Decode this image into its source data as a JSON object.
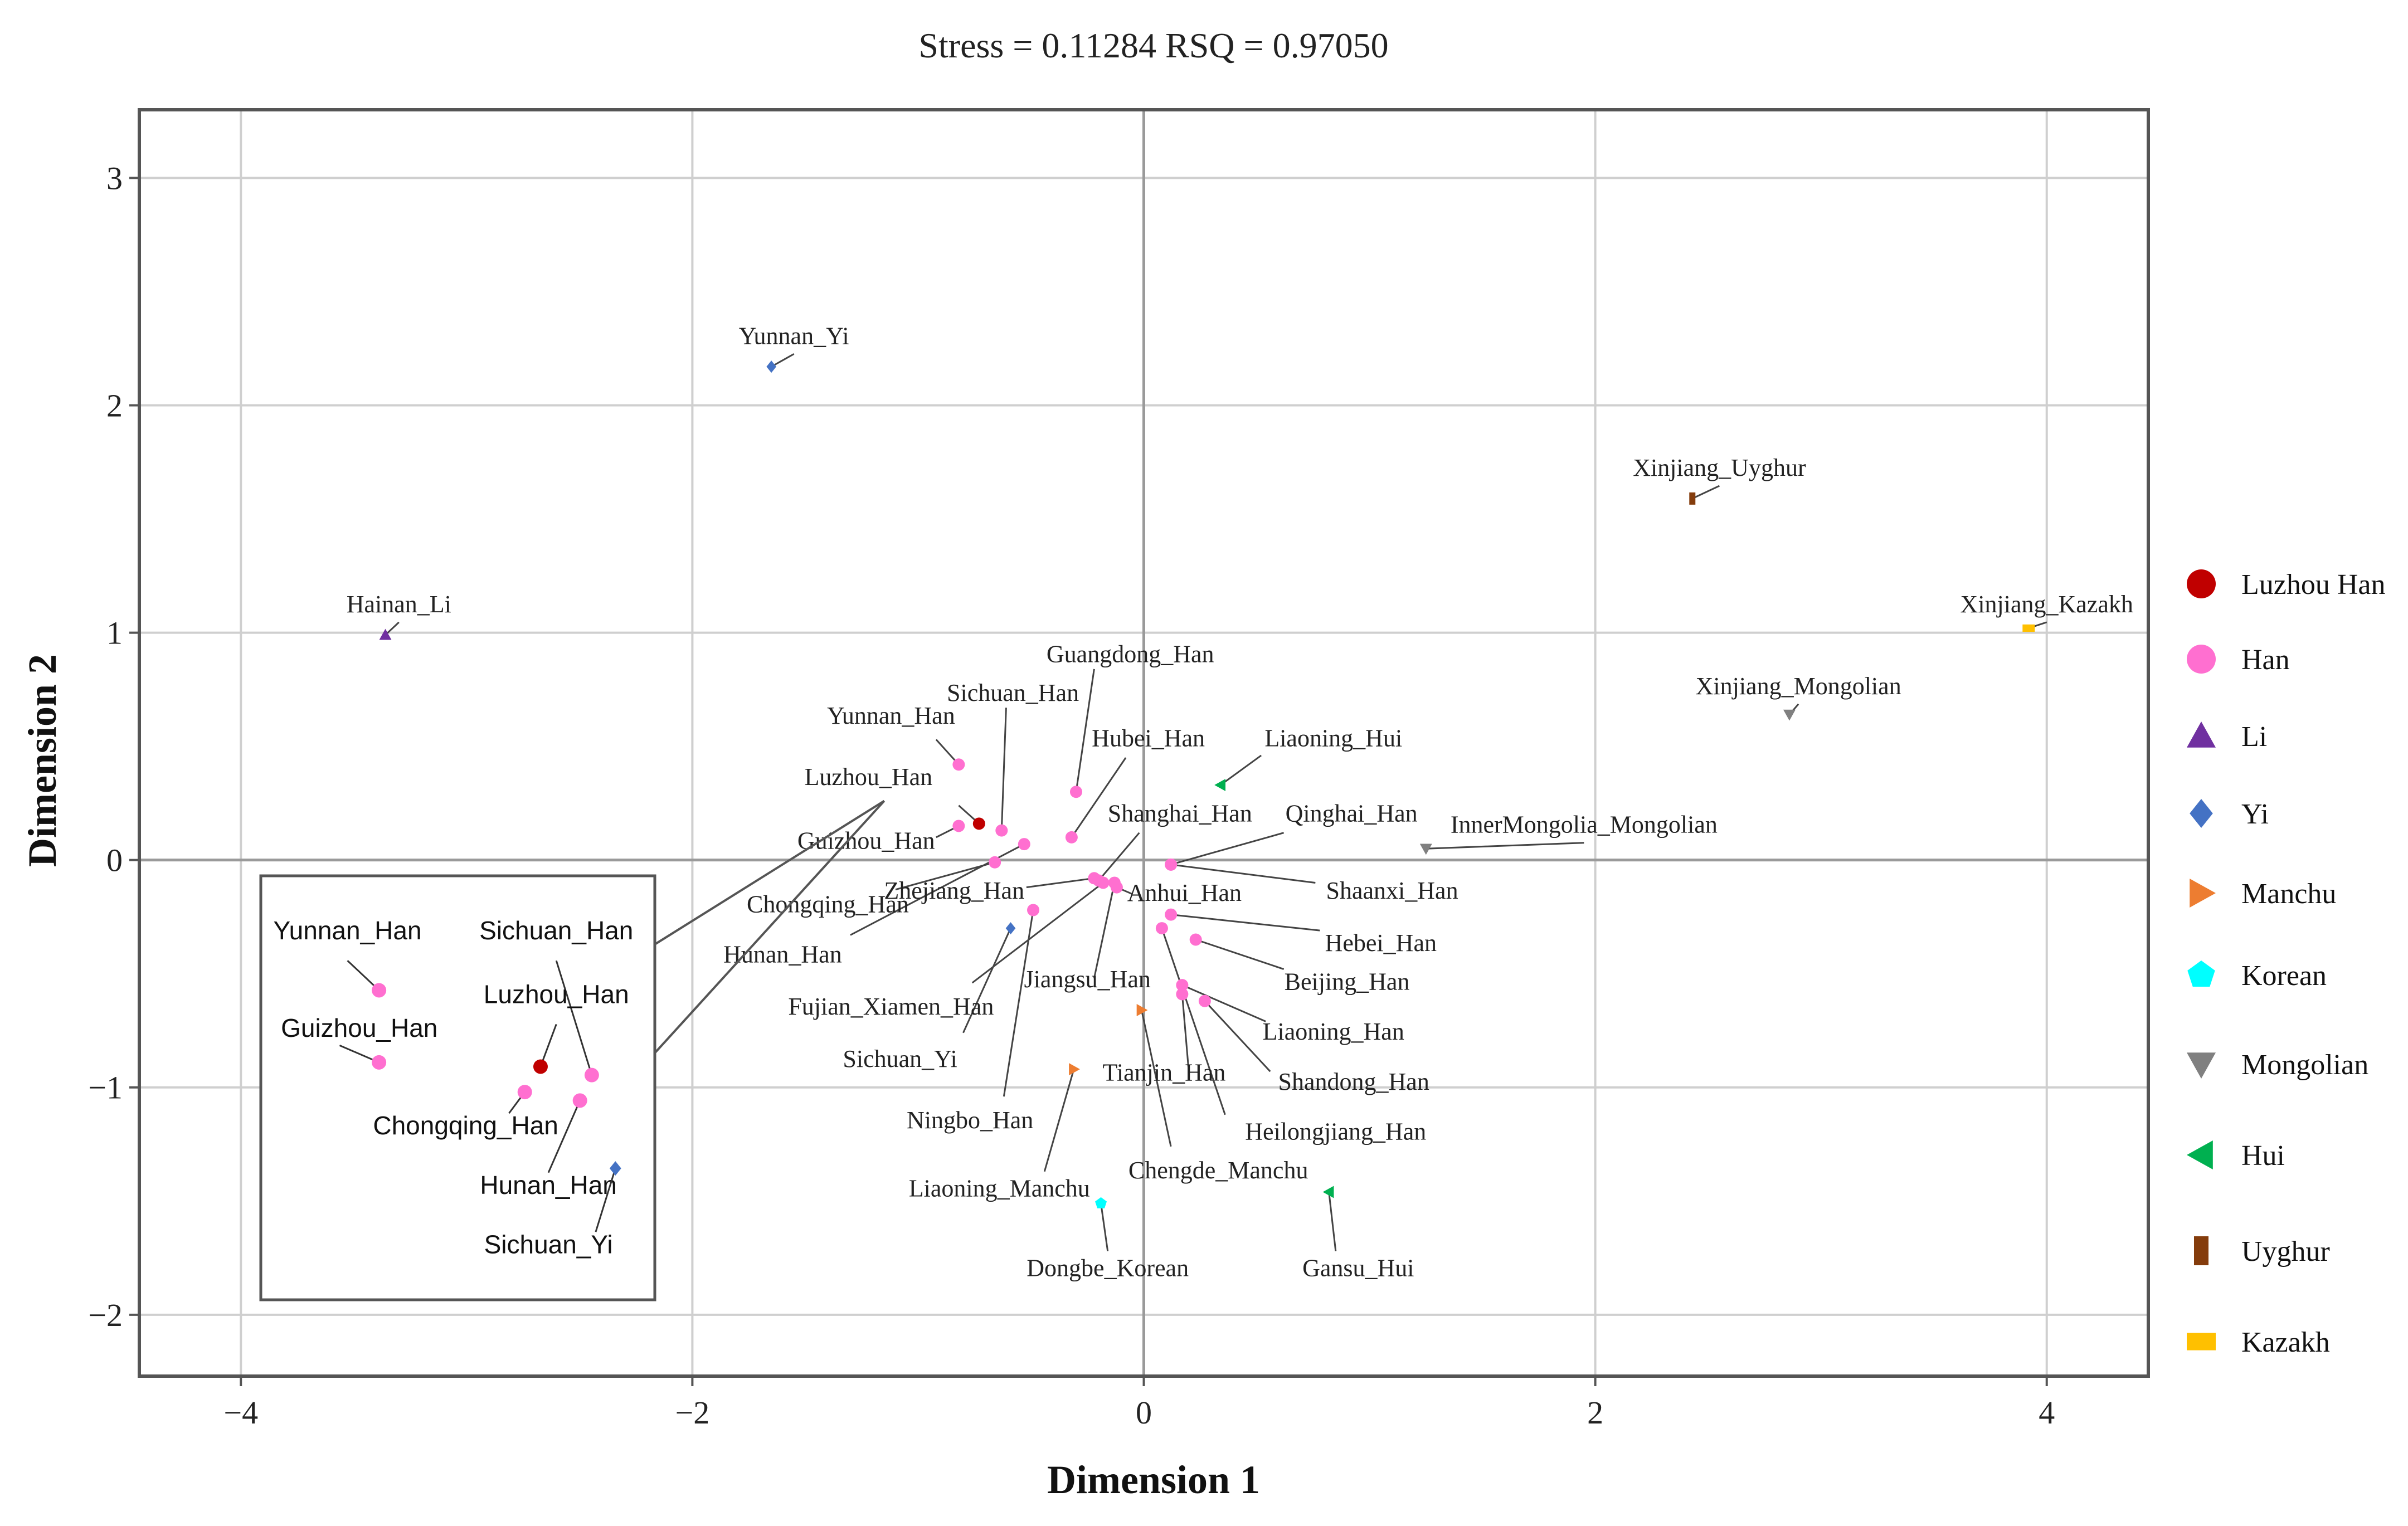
{
  "chart_data": {
    "type": "scatter",
    "title": "Stress = 0.11284  RSQ = 0.97050",
    "xlabel": "Dimension 1",
    "ylabel": "Dimension 2",
    "xlim": [
      -4.45,
      4.45
    ],
    "ylim": [
      -2.27,
      3.3
    ],
    "xticks": [
      -4,
      -2,
      0,
      2,
      4
    ],
    "yticks": [
      -2,
      -1,
      0,
      1,
      2,
      3
    ],
    "xtick_labels": [
      "−4",
      "−2",
      "0",
      "2",
      "4"
    ],
    "ytick_labels": [
      "−2",
      "−1",
      "0",
      "1",
      "2",
      "3"
    ],
    "grid": true,
    "legend_position": "right",
    "groups": [
      {
        "key": "luzhou_han",
        "name": "Luzhou Han",
        "color": "#C00000",
        "marker": "circle"
      },
      {
        "key": "han",
        "name": "Han",
        "color": "#FF6FD0",
        "marker": "circle"
      },
      {
        "key": "li",
        "name": "Li",
        "color": "#7030A0",
        "marker": "triangle-up"
      },
      {
        "key": "yi",
        "name": "Yi",
        "color": "#4472C4",
        "marker": "diamond"
      },
      {
        "key": "manchu",
        "name": "Manchu",
        "color": "#ED7D31",
        "marker": "triangle-right"
      },
      {
        "key": "korean",
        "name": "Korean",
        "color": "#00FFFF",
        "marker": "pentagon"
      },
      {
        "key": "mongolian",
        "name": "Mongolian",
        "color": "#808080",
        "marker": "triangle-down"
      },
      {
        "key": "hui",
        "name": "Hui",
        "color": "#00B050",
        "marker": "triangle-left"
      },
      {
        "key": "uyghur",
        "name": "Uyghur",
        "color": "#843C0C",
        "marker": "rect-tall"
      },
      {
        "key": "kazakh",
        "name": "Kazakh",
        "color": "#FFC000",
        "marker": "rect-wide"
      }
    ],
    "points": [
      {
        "label": "Yunnan_Yi",
        "group": "yi",
        "x": -1.65,
        "y": 2.17,
        "lx": -1.55,
        "ly": 2.27
      },
      {
        "label": "Hainan_Li",
        "group": "li",
        "x": -3.36,
        "y": 0.99,
        "lx": -3.3,
        "ly": 1.09
      },
      {
        "label": "Xinjiang_Uyghur",
        "group": "uyghur",
        "x": 2.43,
        "y": 1.59,
        "lx": 2.55,
        "ly": 1.69
      },
      {
        "label": "Xinjiang_Kazakh",
        "group": "kazakh",
        "x": 3.92,
        "y": 1.02,
        "lx": 4.0,
        "ly": 1.09
      },
      {
        "label": "Xinjiang_Mongolian",
        "group": "mongolian",
        "x": 2.86,
        "y": 0.64,
        "lx": 2.9,
        "ly": 0.73
      },
      {
        "label": "InnerMongolia_Mongolian",
        "group": "mongolian",
        "x": 1.25,
        "y": 0.05,
        "lx": 1.95,
        "ly": 0.12
      },
      {
        "label": "Guangdong_Han",
        "group": "han",
        "x": -0.3,
        "y": 0.3,
        "lx": -0.06,
        "ly": 0.87,
        "x2": -0.22,
        "y2": 0.84
      },
      {
        "label": "Sichuan_Han",
        "group": "han",
        "x": -0.63,
        "y": 0.13,
        "lx": -0.58,
        "ly": 0.7,
        "x2": -0.61,
        "y2": 0.67
      },
      {
        "label": "Yunnan_Han",
        "group": "han",
        "x": -0.82,
        "y": 0.42,
        "lx": -1.12,
        "ly": 0.6,
        "x2": -0.92,
        "y2": 0.53
      },
      {
        "label": "Luzhou_Han",
        "group": "luzhou_han",
        "x": -0.73,
        "y": 0.16,
        "lx": -1.22,
        "ly": 0.33,
        "x2": -0.82,
        "y2": 0.24
      },
      {
        "label": "Guizhou_Han",
        "group": "han",
        "x": -0.82,
        "y": 0.15,
        "lx": -1.23,
        "ly": 0.05,
        "x2": -0.92,
        "y2": 0.1
      },
      {
        "label": "Chongqing_Han",
        "group": "han",
        "x": -0.66,
        "y": -0.01,
        "lx": -1.4,
        "ly": -0.23,
        "x2": -1.1,
        "y2": -0.13
      },
      {
        "label": "Zhejiang_Han",
        "group": "han",
        "x": -0.22,
        "y": -0.08,
        "lx": -0.84,
        "ly": -0.17,
        "x2": -0.52,
        "y2": -0.12
      },
      {
        "label": "Hunan_Han",
        "group": "han",
        "x": -0.53,
        "y": 0.07,
        "lx": -1.6,
        "ly": -0.45,
        "x2": -1.3,
        "y2": -0.33
      },
      {
        "label": "Fujian_Xiamen_Han",
        "group": "han",
        "x": -0.18,
        "y": -0.1,
        "lx": -1.12,
        "ly": -0.68,
        "x2": -0.76,
        "y2": -0.54
      },
      {
        "label": "Sichuan_Yi",
        "group": "yi",
        "x": -0.59,
        "y": -0.3,
        "lx": -1.08,
        "ly": -0.91,
        "x2": -0.8,
        "y2": -0.76
      },
      {
        "label": "Ningbo_Han",
        "group": "han",
        "x": -0.49,
        "y": -0.22,
        "lx": -0.77,
        "ly": -1.18,
        "x2": -0.62,
        "y2": -1.04
      },
      {
        "label": "Jiangsu_Han",
        "group": "han",
        "x": -0.13,
        "y": -0.1,
        "lx": -0.25,
        "ly": -0.56,
        "x2": -0.22,
        "y2": -0.52
      },
      {
        "label": "Hubei_Han",
        "group": "han",
        "x": -0.32,
        "y": 0.1,
        "lx": 0.02,
        "ly": 0.5,
        "x2": -0.08,
        "y2": 0.45
      },
      {
        "label": "Liaoning_Hui",
        "group": "hui",
        "x": 0.34,
        "y": 0.33,
        "lx": 0.84,
        "ly": 0.5,
        "x2": 0.52,
        "y2": 0.46
      },
      {
        "label": "Shanghai_Han",
        "group": "han",
        "x": -0.2,
        "y": -0.09,
        "lx": 0.16,
        "ly": 0.17,
        "x2": -0.02,
        "y2": 0.12
      },
      {
        "label": "Qinghai_Han",
        "group": "han",
        "x": 0.12,
        "y": -0.02,
        "lx": 0.92,
        "ly": 0.17,
        "x2": 0.62,
        "y2": 0.12
      },
      {
        "label": "Shaanxi_Han",
        "group": "han",
        "x": 0.12,
        "y": -0.02,
        "lx": 1.1,
        "ly": -0.17,
        "x2": 0.76,
        "y2": -0.1
      },
      {
        "label": "Anhui_Han",
        "group": "han",
        "x": -0.12,
        "y": -0.12,
        "lx": 0.18,
        "ly": -0.18,
        "x2": -0.05,
        "y2": -0.15
      },
      {
        "label": "Hebei_Han",
        "group": "han",
        "x": 0.12,
        "y": -0.24,
        "lx": 1.05,
        "ly": -0.4,
        "x2": 0.78,
        "y2": -0.31
      },
      {
        "label": "Beijing_Han",
        "group": "han",
        "x": 0.23,
        "y": -0.35,
        "lx": 0.9,
        "ly": -0.57,
        "x2": 0.62,
        "y2": -0.48
      },
      {
        "label": "Liaoning_Han",
        "group": "han",
        "x": 0.17,
        "y": -0.55,
        "lx": 0.84,
        "ly": -0.79,
        "x2": 0.54,
        "y2": -0.71
      },
      {
        "label": "Shandong_Han",
        "group": "han",
        "x": 0.27,
        "y": -0.62,
        "lx": 0.93,
        "ly": -1.01,
        "x2": 0.56,
        "y2": -0.93
      },
      {
        "label": "Heilongjiang_Han",
        "group": "han",
        "x": 0.08,
        "y": -0.3,
        "lx": 0.85,
        "ly": -1.23,
        "x2": 0.36,
        "y2": -1.12
      },
      {
        "label": "Tianjin_Han",
        "group": "han",
        "x": 0.17,
        "y": -0.59,
        "lx": 0.09,
        "ly": -0.97,
        "x2": 0.2,
        "y2": -0.94
      },
      {
        "label": "Chengde_Manchu",
        "group": "manchu",
        "x": -0.01,
        "y": -0.66,
        "lx": 0.33,
        "ly": -1.4,
        "x2": 0.12,
        "y2": -1.26
      },
      {
        "label": "Liaoning_Manchu",
        "group": "manchu",
        "x": -0.31,
        "y": -0.92,
        "lx": -0.64,
        "ly": -1.48,
        "x2": -0.44,
        "y2": -1.37
      },
      {
        "label": "Dongbe_Korean",
        "group": "korean",
        "x": -0.19,
        "y": -1.51,
        "lx": -0.16,
        "ly": -1.83,
        "x2": -0.16,
        "y2": -1.72
      },
      {
        "label": "Gansu_Hui",
        "group": "hui",
        "x": 0.82,
        "y": -1.46,
        "lx": 0.95,
        "ly": -1.83,
        "x2": 0.85,
        "y2": -1.72
      }
    ],
    "inset": {
      "points": [
        {
          "label": "Yunnan_Han",
          "group": "han",
          "x": 0.3,
          "y": 0.73,
          "lx": 0.22,
          "ly": 0.85,
          "ax": 0.22,
          "ay": 0.8
        },
        {
          "label": "Sichuan_Han",
          "group": "han",
          "x": 0.84,
          "y": 0.53,
          "lx": 0.75,
          "ly": 0.85,
          "ax": 0.75,
          "ay": 0.8
        },
        {
          "label": "Luzhou_Han",
          "group": "luzhou_han",
          "x": 0.71,
          "y": 0.55,
          "lx": 0.75,
          "ly": 0.7,
          "ax": 0.75,
          "ay": 0.65
        },
        {
          "label": "Guizhou_Han",
          "group": "han",
          "x": 0.3,
          "y": 0.56,
          "lx": 0.25,
          "ly": 0.62,
          "ax": 0.2,
          "ay": 0.6
        },
        {
          "label": "Chongqing_Han",
          "group": "han",
          "x": 0.67,
          "y": 0.49,
          "lx": 0.52,
          "ly": 0.39,
          "ax": 0.63,
          "ay": 0.44
        },
        {
          "label": "Hunan_Han",
          "group": "han",
          "x": 0.81,
          "y": 0.47,
          "lx": 0.73,
          "ly": 0.25,
          "ax": 0.73,
          "ay": 0.3
        },
        {
          "label": "Sichuan_Yi",
          "group": "yi",
          "x": 0.9,
          "y": 0.31,
          "lx": 0.73,
          "ly": 0.11,
          "ax": 0.85,
          "ay": 0.16
        }
      ]
    }
  }
}
